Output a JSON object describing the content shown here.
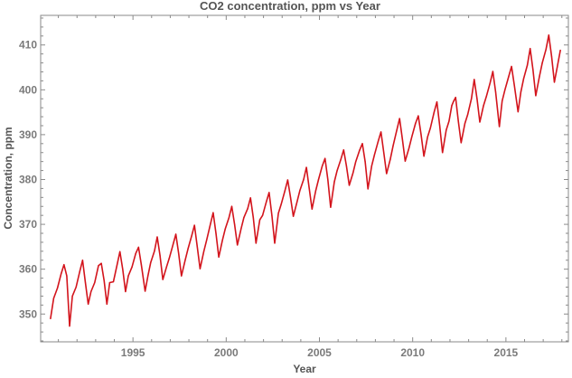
{
  "chart_data": {
    "type": "line",
    "title": "CO2 concentration, ppm vs Year",
    "xlabel": "Year",
    "ylabel": "Concentration, ppm",
    "xlim": [
      1990.05,
      2018.35
    ],
    "ylim": [
      343.8,
      416.6
    ],
    "xticks": [
      1995,
      2000,
      2005,
      2010,
      2015
    ],
    "yticks": [
      350,
      360,
      370,
      380,
      390,
      400,
      410
    ],
    "grid": false,
    "legend": "none",
    "line_color": "#d3141c",
    "series": [
      {
        "name": "CO2 concentration",
        "x": [
          1990.58,
          1990.75,
          1990.95,
          1991.15,
          1991.3,
          1991.45,
          1991.6,
          1991.75,
          1991.95,
          1992.15,
          1992.3,
          1992.45,
          1992.6,
          1992.75,
          1992.95,
          1993.15,
          1993.3,
          1993.45,
          1993.6,
          1993.75,
          1993.95,
          1994.15,
          1994.3,
          1994.45,
          1994.6,
          1994.75,
          1994.95,
          1995.15,
          1995.3,
          1995.45,
          1995.65,
          1995.8,
          1995.95,
          1996.15,
          1996.3,
          1996.45,
          1996.6,
          1996.8,
          1996.95,
          1997.15,
          1997.3,
          1997.45,
          1997.6,
          1997.8,
          1997.95,
          1998.15,
          1998.3,
          1998.45,
          1998.6,
          1998.8,
          1998.95,
          1999.15,
          1999.3,
          1999.45,
          1999.6,
          1999.8,
          1999.95,
          2000.15,
          2000.3,
          2000.45,
          2000.6,
          2000.8,
          2000.95,
          2001.15,
          2001.3,
          2001.45,
          2001.6,
          2001.8,
          2001.95,
          2002.15,
          2002.3,
          2002.45,
          2002.6,
          2002.8,
          2002.95,
          2003.15,
          2003.3,
          2003.45,
          2003.6,
          2003.8,
          2003.95,
          2004.15,
          2004.3,
          2004.45,
          2004.6,
          2004.8,
          2004.95,
          2005.15,
          2005.3,
          2005.45,
          2005.6,
          2005.8,
          2005.95,
          2006.15,
          2006.3,
          2006.45,
          2006.6,
          2006.8,
          2006.95,
          2007.15,
          2007.3,
          2007.45,
          2007.6,
          2007.8,
          2007.95,
          2008.15,
          2008.3,
          2008.45,
          2008.6,
          2008.8,
          2008.95,
          2009.15,
          2009.3,
          2009.45,
          2009.6,
          2009.8,
          2009.95,
          2010.15,
          2010.3,
          2010.45,
          2010.6,
          2010.8,
          2010.95,
          2011.15,
          2011.3,
          2011.45,
          2011.6,
          2011.8,
          2011.95,
          2012.1,
          2012.2,
          2012.3,
          2012.45,
          2012.6,
          2012.8,
          2012.95,
          2013.15,
          2013.3,
          2013.45,
          2013.6,
          2013.8,
          2013.95,
          2014.15,
          2014.3,
          2014.45,
          2014.65,
          2014.8,
          2014.95,
          2015.15,
          2015.3,
          2015.45,
          2015.65,
          2015.8,
          2015.95,
          2016.15,
          2016.3,
          2016.45,
          2016.6,
          2016.8,
          2016.95,
          2017.15,
          2017.3,
          2017.45,
          2017.6,
          2017.75,
          2017.92
        ],
        "y": [
          349.0,
          353.5,
          355.8,
          359.0,
          361.0,
          358.5,
          347.3,
          354.0,
          356.0,
          359.5,
          362.0,
          357.0,
          352.2,
          355.0,
          357.0,
          360.8,
          361.3,
          357.5,
          352.2,
          357.0,
          357.2,
          361.0,
          363.9,
          360.0,
          355.0,
          358.5,
          360.5,
          363.5,
          364.9,
          361.0,
          355.1,
          358.5,
          361.5,
          364.0,
          367.2,
          363.0,
          357.7,
          360.5,
          362.5,
          365.5,
          367.8,
          363.5,
          358.5,
          362.0,
          364.5,
          367.5,
          369.8,
          365.0,
          360.1,
          364.0,
          366.5,
          370.0,
          372.6,
          368.0,
          362.7,
          366.5,
          369.0,
          371.5,
          374.0,
          370.0,
          365.4,
          369.0,
          371.5,
          373.5,
          375.9,
          371.5,
          365.8,
          371.0,
          372.0,
          375.0,
          377.1,
          372.0,
          365.8,
          372.5,
          374.5,
          377.5,
          379.9,
          376.0,
          371.8,
          375.0,
          377.5,
          380.0,
          382.7,
          378.0,
          373.4,
          377.5,
          380.0,
          383.0,
          384.7,
          380.0,
          373.8,
          379.5,
          382.0,
          384.5,
          386.6,
          383.0,
          378.7,
          381.5,
          384.0,
          386.5,
          388.0,
          384.0,
          377.9,
          383.0,
          385.5,
          388.5,
          390.6,
          386.0,
          381.3,
          384.5,
          387.5,
          391.0,
          393.6,
          389.0,
          384.1,
          387.0,
          389.5,
          392.5,
          394.2,
          390.0,
          385.2,
          389.5,
          391.5,
          395.0,
          397.3,
          392.0,
          386.0,
          391.0,
          393.0,
          396.5,
          397.5,
          398.3,
          393.0,
          388.2,
          392.5,
          394.5,
          398.0,
          402.3,
          398.0,
          392.8,
          396.5,
          398.5,
          401.5,
          404.1,
          399.5,
          391.8,
          397.5,
          400.0,
          403.0,
          405.2,
          401.0,
          395.1,
          399.5,
          402.5,
          405.5,
          409.2,
          404.5,
          398.7,
          403.0,
          406.0,
          409.0,
          412.2,
          407.5,
          401.7,
          405.0,
          408.8
        ]
      }
    ]
  }
}
